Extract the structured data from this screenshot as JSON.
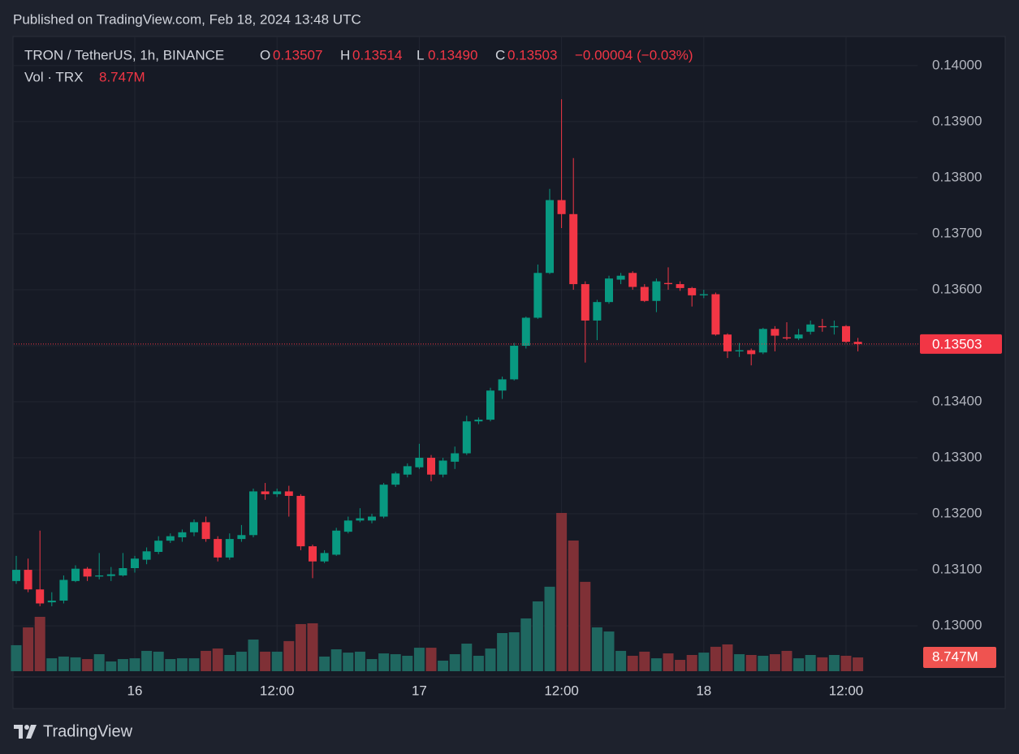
{
  "header": {
    "published": "Published on TradingView.com, Feb 18, 2024 13:48 UTC"
  },
  "footer": {
    "brand": "TradingView"
  },
  "chart_data": {
    "type": "candlestick",
    "symbol": "TRON / TetherUS, 1h, BINANCE",
    "ohlc_legend": {
      "o_label": "O",
      "o": "0.13507",
      "h_label": "H",
      "h": "0.13514",
      "l_label": "L",
      "l": "0.13490",
      "c_label": "C",
      "c": "0.13503",
      "change": "−0.00004 (−0.03%)"
    },
    "volume_title": "Vol · TRX",
    "volume_label": "8.747M",
    "last_price": {
      "value": 0.13503,
      "label": "0.13503"
    },
    "up_color": "#089981",
    "down_color": "#f23645",
    "up_volume_color": "#1f6760",
    "down_volume_color": "#7f3036",
    "grid": true,
    "ylim": [
      0.12919,
      0.14052
    ],
    "yticks": [
      {
        "value": 0.13,
        "label": "0.13000"
      },
      {
        "value": 0.131,
        "label": "0.13100"
      },
      {
        "value": 0.132,
        "label": "0.13200"
      },
      {
        "value": 0.133,
        "label": "0.13300"
      },
      {
        "value": 0.134,
        "label": "0.13400"
      },
      {
        "value": 0.135,
        "label": "0.13500"
      },
      {
        "value": 0.136,
        "label": "0.13600"
      },
      {
        "value": 0.137,
        "label": "0.13700"
      },
      {
        "value": 0.138,
        "label": "0.13800"
      },
      {
        "value": 0.139,
        "label": "0.13900"
      },
      {
        "value": 0.14,
        "label": "0.14000"
      }
    ],
    "categories": [
      null,
      null,
      null,
      null,
      null,
      null,
      null,
      null,
      null,
      null,
      "16",
      null,
      null,
      null,
      null,
      null,
      null,
      null,
      null,
      null,
      null,
      null,
      "12:00",
      null,
      null,
      null,
      null,
      null,
      null,
      null,
      null,
      null,
      null,
      null,
      "17",
      null,
      null,
      null,
      null,
      null,
      null,
      null,
      null,
      null,
      null,
      null,
      "12:00",
      null,
      null,
      null,
      null,
      null,
      null,
      null,
      null,
      null,
      null,
      null,
      "18",
      null,
      null,
      null,
      null,
      null,
      null,
      null,
      null,
      null,
      null,
      null,
      "12:00",
      null
    ],
    "open": [
      0.1308,
      0.131,
      0.13065,
      0.13042,
      0.13045,
      0.1308,
      0.13102,
      0.13088,
      0.13089,
      0.1309,
      0.13103,
      0.13118,
      0.13132,
      0.13152,
      0.13158,
      0.13167,
      0.13185,
      0.13155,
      0.13122,
      0.13155,
      0.13162,
      0.1324,
      0.13235,
      0.1324,
      0.13232,
      0.13142,
      0.13115,
      0.13127,
      0.13168,
      0.13188,
      0.13188,
      0.13195,
      0.13252,
      0.1327,
      0.13283,
      0.133,
      0.1327,
      0.13293,
      0.13308,
      0.13365,
      0.13368,
      0.1342,
      0.1344,
      0.135,
      0.1355,
      0.1363,
      0.1376,
      0.13735,
      0.1361,
      0.13545,
      0.13578,
      0.13618,
      0.1363,
      0.13605,
      0.1358,
      0.13612,
      0.1361,
      0.13603,
      0.1359,
      0.13592,
      0.1352,
      0.1349,
      0.13492,
      0.13488,
      0.1353,
      0.13515,
      0.13513,
      0.13525,
      0.13535,
      0.13533,
      0.13535,
      0.13507
    ],
    "high": [
      0.13125,
      0.1312,
      0.1317,
      0.1306,
      0.1309,
      0.13108,
      0.13105,
      0.1313,
      0.13105,
      0.1313,
      0.13125,
      0.1314,
      0.1316,
      0.13165,
      0.13172,
      0.1319,
      0.13195,
      0.1316,
      0.13165,
      0.1318,
      0.13245,
      0.13255,
      0.13245,
      0.1325,
      0.13235,
      0.13145,
      0.13135,
      0.13175,
      0.13195,
      0.1321,
      0.132,
      0.13255,
      0.13275,
      0.1329,
      0.13325,
      0.13305,
      0.133,
      0.1332,
      0.13375,
      0.13372,
      0.13425,
      0.13445,
      0.13505,
      0.13552,
      0.13645,
      0.1378,
      0.1394,
      0.13835,
      0.13615,
      0.13582,
      0.13625,
      0.1363,
      0.13633,
      0.1361,
      0.1362,
      0.1364,
      0.13615,
      0.13605,
      0.136,
      0.13595,
      0.13522,
      0.13505,
      0.13495,
      0.13532,
      0.13535,
      0.13542,
      0.1353,
      0.13545,
      0.13548,
      0.13545,
      0.13537,
      0.13514
    ],
    "low": [
      0.13075,
      0.1306,
      0.13035,
      0.13035,
      0.1304,
      0.13078,
      0.1308,
      0.13083,
      0.1308,
      0.13088,
      0.13095,
      0.1311,
      0.13128,
      0.13148,
      0.1315,
      0.1316,
      0.1315,
      0.13115,
      0.13118,
      0.1315,
      0.13158,
      0.13225,
      0.1323,
      0.13195,
      0.13135,
      0.13085,
      0.13112,
      0.13125,
      0.13165,
      0.13185,
      0.13183,
      0.13192,
      0.13248,
      0.13265,
      0.1328,
      0.13258,
      0.13265,
      0.1328,
      0.13305,
      0.1336,
      0.13365,
      0.13405,
      0.13438,
      0.13495,
      0.13548,
      0.13628,
      0.1371,
      0.136,
      0.1347,
      0.1351,
      0.13575,
      0.1361,
      0.136,
      0.13578,
      0.1356,
      0.136,
      0.13598,
      0.1357,
      0.13585,
      0.13518,
      0.13478,
      0.1348,
      0.13465,
      0.13485,
      0.1349,
      0.1351,
      0.1351,
      0.1352,
      0.13525,
      0.1352,
      0.13505,
      0.1349
    ],
    "close": [
      0.131,
      0.13065,
      0.1304,
      0.13045,
      0.13082,
      0.13102,
      0.13088,
      0.1309,
      0.13092,
      0.13103,
      0.1312,
      0.13133,
      0.13152,
      0.1316,
      0.13167,
      0.13185,
      0.13155,
      0.13122,
      0.13155,
      0.13162,
      0.1324,
      0.13235,
      0.1324,
      0.13232,
      0.13142,
      0.13115,
      0.1313,
      0.1317,
      0.13188,
      0.13192,
      0.13195,
      0.13252,
      0.13272,
      0.13285,
      0.133,
      0.1327,
      0.13295,
      0.13308,
      0.13365,
      0.13368,
      0.1342,
      0.1344,
      0.135,
      0.1355,
      0.1363,
      0.1376,
      0.13735,
      0.1361,
      0.13545,
      0.13578,
      0.1362,
      0.13625,
      0.13605,
      0.1358,
      0.13615,
      0.1361,
      0.13603,
      0.1359,
      0.13592,
      0.1352,
      0.1349,
      0.13492,
      0.13485,
      0.1353,
      0.13518,
      0.13513,
      0.1352,
      0.13538,
      0.13533,
      0.13535,
      0.13507,
      0.13503
    ],
    "volume": [
      16.5,
      27.8,
      34.5,
      8.2,
      9.3,
      8.8,
      7.7,
      10.8,
      6.2,
      7.7,
      8.2,
      12.9,
      12.4,
      7.7,
      8.2,
      8.2,
      12.9,
      14.4,
      10.3,
      12.4,
      20.1,
      12.4,
      12.4,
      19.1,
      29.9,
      30.4,
      9.3,
      13.9,
      11.8,
      12.4,
      7.7,
      11.3,
      10.8,
      9.8,
      14.9,
      14.9,
      6.7,
      10.8,
      17.5,
      9.8,
      14.4,
      24.2,
      24.7,
      33.5,
      44.3,
      53.6,
      100.4,
      82.9,
      56.7,
      27.8,
      25.2,
      12.9,
      9.8,
      12.4,
      8.2,
      11.3,
      7.2,
      10.3,
      11.8,
      15.5,
      17.0,
      10.8,
      10.3,
      9.8,
      10.8,
      12.9,
      8.2,
      10.3,
      8.8,
      10.3,
      9.8,
      8.747
    ]
  }
}
